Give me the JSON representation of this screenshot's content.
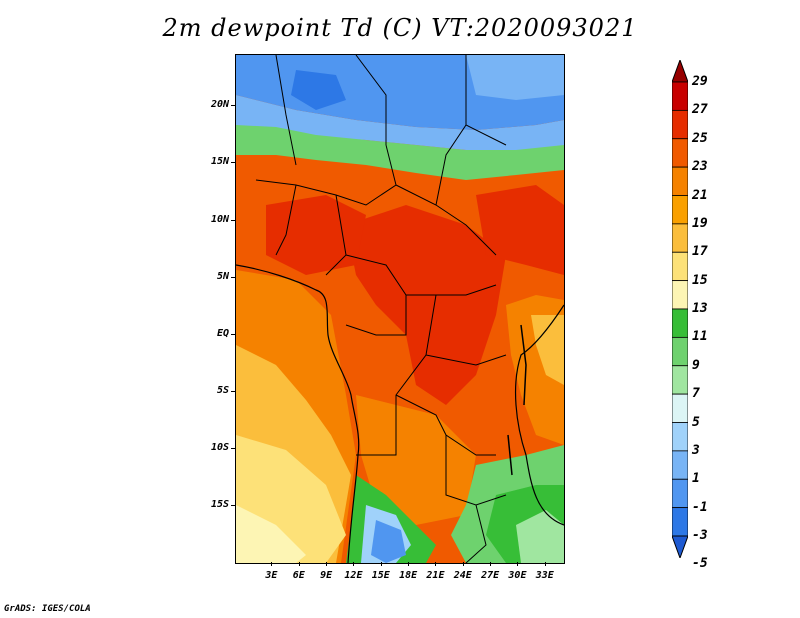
{
  "title": "2m dewpoint Td (C) VT:2020093021",
  "credit": "GrADS: IGES/COLA",
  "map": {
    "lon_range": [
      -1,
      35
    ],
    "lat_range": [
      -20,
      24.5
    ],
    "lat_ticks": [
      {
        "lat": 20,
        "label": "20N"
      },
      {
        "lat": 15,
        "label": "15N"
      },
      {
        "lat": 10,
        "label": "10N"
      },
      {
        "lat": 5,
        "label": "5N"
      },
      {
        "lat": 0,
        "label": "EQ"
      },
      {
        "lat": -5,
        "label": "5S"
      },
      {
        "lat": -10,
        "label": "10S"
      },
      {
        "lat": -15,
        "label": "15S"
      }
    ],
    "lon_ticks": [
      {
        "lon": 3,
        "label": "3E"
      },
      {
        "lon": 6,
        "label": "6E"
      },
      {
        "lon": 9,
        "label": "9E"
      },
      {
        "lon": 12,
        "label": "12E"
      },
      {
        "lon": 15,
        "label": "15E"
      },
      {
        "lon": 18,
        "label": "18E"
      },
      {
        "lon": 21,
        "label": "21E"
      },
      {
        "lon": 24,
        "label": "24E"
      },
      {
        "lon": 27,
        "label": "27E"
      },
      {
        "lon": 30,
        "label": "30E"
      },
      {
        "lon": 33,
        "label": "33E"
      }
    ]
  },
  "colorbar": {
    "labels": [
      "29",
      "27",
      "25",
      "23",
      "21",
      "19",
      "17",
      "15",
      "13",
      "11",
      "9",
      "7",
      "5",
      "3",
      "1",
      "-1",
      "-3",
      "-5"
    ],
    "colors": [
      "#960000",
      "#c80000",
      "#e62d00",
      "#f05a00",
      "#f58200",
      "#f9a000",
      "#fbbe3c",
      "#fde178",
      "#fdf5b4",
      "#37be37",
      "#6ed26e",
      "#a0e6a0",
      "#dcf5f5",
      "#a0d2fa",
      "#78b4f5",
      "#5096f0",
      "#2d78e6",
      "#1e5ad2"
    ]
  },
  "regions": [
    {
      "name": "sahara-blue",
      "color": "#5096f0"
    },
    {
      "name": "sahel-light-blue",
      "color": "#78b4f5"
    },
    {
      "name": "sahel-green",
      "color": "#6ed26e"
    },
    {
      "name": "tropics-red",
      "color": "#f05a00"
    },
    {
      "name": "central-deep-red",
      "color": "#e62d00"
    },
    {
      "name": "atlantic-orange",
      "color": "#f58200"
    },
    {
      "name": "south-atlantic-yellow",
      "color": "#fbbe3c"
    },
    {
      "name": "south-atlantic-pale",
      "color": "#fde178"
    },
    {
      "name": "southern-africa-green",
      "color": "#37be37"
    },
    {
      "name": "kalahari-blue",
      "color": "#5096f0"
    }
  ]
}
